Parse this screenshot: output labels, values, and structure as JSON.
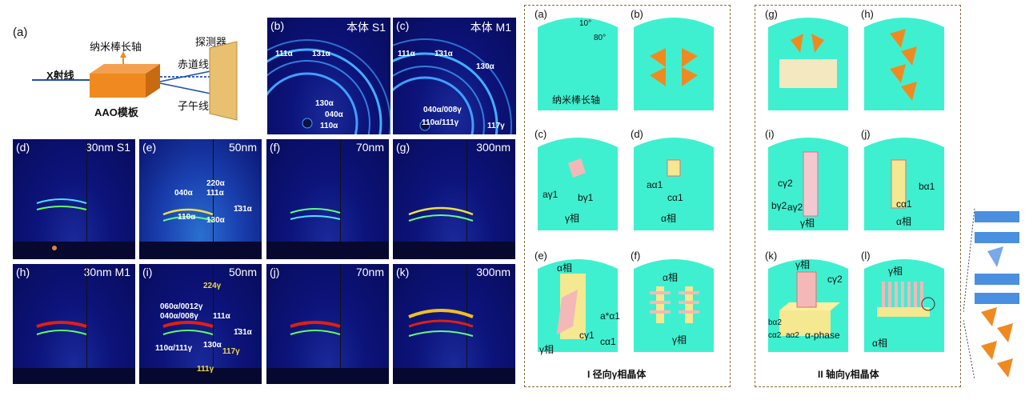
{
  "schematic": {
    "label": "(a)",
    "nanorod_axis": "纳米棒长轴",
    "detector": "探测器",
    "equator": "赤道线",
    "xray": "X射线",
    "meridian": "子午线",
    "template": "AAO模板"
  },
  "bulk_panels": [
    {
      "label": "(b)",
      "name": "本体 S1"
    },
    {
      "label": "(c)",
      "name": "本体 M1"
    }
  ],
  "row_s1": [
    {
      "label": "(d)",
      "name": "30nm S1"
    },
    {
      "label": "(e)",
      "name": "50nm"
    },
    {
      "label": "(f)",
      "name": "70nm"
    },
    {
      "label": "(g)",
      "name": "300nm"
    }
  ],
  "row_m1": [
    {
      "label": "(h)",
      "name": "30nm M1"
    },
    {
      "label": "(i)",
      "name": "50nm"
    },
    {
      "label": "(j)",
      "name": "70nm"
    },
    {
      "label": "(k)",
      "name": "300nm"
    }
  ],
  "reflections": {
    "b": [
      "111α",
      "1̄31α",
      "130α",
      "040α",
      "110α"
    ],
    "c": [
      "111α",
      "1̄31α",
      "130α",
      "040α/008γ",
      "110α/111γ",
      "117γ"
    ],
    "e": [
      "220α",
      "040α",
      "111α",
      "110α",
      "130α",
      "1̄31α"
    ],
    "i": [
      "224γ",
      "060α/0012γ",
      "040α/008γ",
      "111α",
      "1̄31α",
      "110α/111γ",
      "130α",
      "117γ",
      "111γ"
    ]
  },
  "group1": {
    "caption": "I 径向γ相晶体",
    "cells": [
      {
        "label": "(a)",
        "text": "纳米棒长轴",
        "angle1": "10°",
        "angle2": "80°"
      },
      {
        "label": "(b)"
      },
      {
        "label": "(c)",
        "axes": [
          "aγ1",
          "bγ1"
        ],
        "phase": "γ相"
      },
      {
        "label": "(d)",
        "axes": [
          "aα1",
          "cα1"
        ],
        "phase": "α相"
      },
      {
        "label": "(e)",
        "phase_top": "α相",
        "phase_bottom": "γ相",
        "axes": [
          "a*α1",
          "cγ1",
          "cα1"
        ]
      },
      {
        "label": "(f)",
        "phase_top": "α相",
        "phase_bottom": "γ相"
      }
    ]
  },
  "group2": {
    "caption": "II 轴向γ相晶体",
    "cells": [
      {
        "label": "(g)"
      },
      {
        "label": "(h)"
      },
      {
        "label": "(i)",
        "axes": [
          "cγ2",
          "bγ2",
          "aγ2"
        ],
        "phase": "γ相"
      },
      {
        "label": "(j)",
        "axes": [
          "bα1",
          "cα1"
        ],
        "phase": "α相"
      },
      {
        "label": "(k)",
        "phase_top": "γ相",
        "axes": [
          "cγ2",
          "bα2",
          "cα2",
          "aα2"
        ],
        "phase_bottom": "α-phase"
      },
      {
        "label": "(l)",
        "phase_top": "γ相",
        "phase_bottom": "α相"
      }
    ]
  },
  "colors": {
    "cyan": "#3ff0d0",
    "orange": "#f08a20",
    "pink": "#f4b8b8",
    "yellow": "#f4e890",
    "box": "#8a6d3b"
  }
}
